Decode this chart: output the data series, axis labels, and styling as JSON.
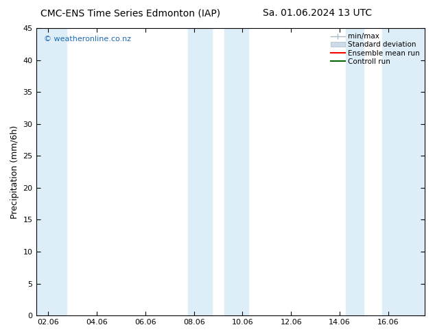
{
  "title_left": "CMC-ENS Time Series Edmonton (IAP)",
  "title_right": "Sa. 01.06.2024 13 UTC",
  "ylabel": "Precipitation (mm/6h)",
  "ylim": [
    0,
    45
  ],
  "yticks": [
    0,
    5,
    10,
    15,
    20,
    25,
    30,
    35,
    40,
    45
  ],
  "xtick_labels": [
    "02.06",
    "04.06",
    "06.06",
    "08.06",
    "10.06",
    "12.06",
    "14.06",
    "16.06"
  ],
  "xtick_positions": [
    2,
    4,
    6,
    8,
    10,
    12,
    14,
    16
  ],
  "xlim": [
    1.5,
    17.5
  ],
  "shaded_bands": [
    {
      "xmin": 1.5,
      "xmax": 2.75,
      "color": "#ddeef8"
    },
    {
      "xmin": 7.75,
      "xmax": 8.75,
      "color": "#ddeef8"
    },
    {
      "xmin": 9.25,
      "xmax": 10.25,
      "color": "#ddeef8"
    },
    {
      "xmin": 14.25,
      "xmax": 15.0,
      "color": "#ddeef8"
    },
    {
      "xmin": 15.75,
      "xmax": 17.5,
      "color": "#ddeef8"
    }
  ],
  "watermark": "© weatheronline.co.nz",
  "watermark_color": "#1a6ab5",
  "bg_color": "#ffffff",
  "plot_bg_color": "#ffffff",
  "legend_items": [
    {
      "label": "min/max",
      "color": "#b8cfe0",
      "type": "errorbar"
    },
    {
      "label": "Standard deviation",
      "color": "#ccdaea",
      "type": "bar"
    },
    {
      "label": "Ensemble mean run",
      "color": "#ff0000",
      "type": "line"
    },
    {
      "label": "Controll run",
      "color": "#006400",
      "type": "line"
    }
  ],
  "title_fontsize": 10,
  "tick_fontsize": 8,
  "ylabel_fontsize": 9,
  "legend_fontsize": 7.5
}
